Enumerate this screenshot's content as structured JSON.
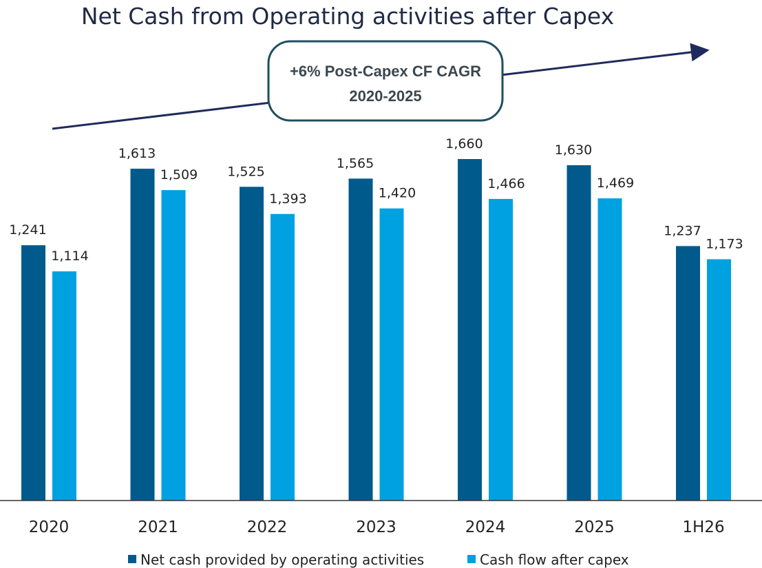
{
  "chart_data": {
    "type": "bar",
    "title": "Net Cash from Operating activities after Capex",
    "categories": [
      "2020",
      "2021",
      "2022",
      "2023",
      "2024",
      "2025",
      "1H26"
    ],
    "series": [
      {
        "name": "Net cash provided by operating activities",
        "color": "#005A8C",
        "values": [
          1241,
          1613,
          1525,
          1565,
          1660,
          1630,
          1237
        ],
        "labels": [
          "1,241",
          "1,613",
          "1,525",
          "1,565",
          "1,660",
          "1,630",
          "1,237"
        ]
      },
      {
        "name": "Cash flow after capex",
        "color": "#00A1E0",
        "values": [
          1114,
          1509,
          1393,
          1420,
          1466,
          1469,
          1173
        ],
        "labels": [
          "1,114",
          "1,509",
          "1,393",
          "1,420",
          "1,466",
          "1,469",
          "1,173"
        ]
      }
    ],
    "annotation": {
      "line1": "+6% Post-Capex CF CAGR",
      "line2": "2020-2025"
    },
    "ylim": [
      0,
      2000
    ],
    "grid": false,
    "legend_position": "bottom",
    "colors": {
      "title": "#1F2A44",
      "arrow": "#1F2A5C",
      "annotation_border": "#1F4E5F",
      "annotation_text": "#3A4750",
      "axis": "#333333",
      "text": "#222222"
    }
  }
}
